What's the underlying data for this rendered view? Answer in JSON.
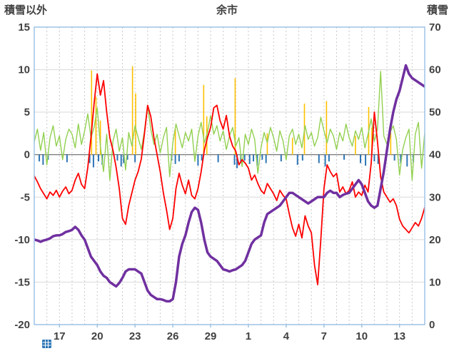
{
  "header": {
    "left_axis_title": "積雪以外",
    "title": "余市",
    "right_axis_title": "積雪"
  },
  "icons": {
    "bottom_left": "table-icon"
  },
  "colors": {
    "frame": "#9DC3E6",
    "grid": "#D9D9D9",
    "grid_dash": "#C9C9C9",
    "zero_line": "#808080",
    "text": "#404040",
    "red": "#FF0000",
    "green": "#92D050",
    "purple": "#7030A0",
    "orange": "#FFC000",
    "blue": "#2E75B6"
  },
  "chart_data": {
    "type": "line",
    "title": "余市",
    "left_axis": {
      "label": "積雪以外",
      "min": -20,
      "max": 15,
      "ticks": [
        15,
        10,
        5,
        0,
        -5,
        -10,
        -15,
        -20
      ]
    },
    "right_axis": {
      "label": "積雪",
      "min": 0,
      "max": 70,
      "ticks": [
        70,
        60,
        50,
        40,
        30,
        20,
        10,
        0
      ]
    },
    "x_axis": {
      "domain_start": 15,
      "domain_end": 46,
      "tick_days": [
        17,
        20,
        23,
        26,
        29,
        32,
        35,
        38,
        41,
        44
      ],
      "tick_labels": [
        "17",
        "20",
        "23",
        "26",
        "29",
        "1",
        "4",
        "7",
        "10",
        "13"
      ],
      "minor_grid_step": 1
    },
    "x_start": 15,
    "x_step": 0.25,
    "series": [
      {
        "name": "series-red-temperature",
        "axis": "left",
        "color": "#FF0000",
        "width": 1.8,
        "values": [
          -2.5,
          -3.2,
          -4.0,
          -4.6,
          -5.2,
          -4.4,
          -4.8,
          -4.2,
          -5.0,
          -4.3,
          -3.8,
          -4.6,
          -4.2,
          -3.0,
          -2.2,
          -3.5,
          -4.0,
          -1.5,
          2.0,
          6.0,
          9.5,
          7.0,
          8.7,
          5.0,
          2.0,
          0.5,
          -1.5,
          -4.0,
          -7.5,
          -8.2,
          -6.0,
          -4.5,
          -3.0,
          -2.0,
          -0.5,
          2.5,
          5.8,
          4.5,
          2.0,
          0.0,
          -2.0,
          -4.5,
          -6.5,
          -8.8,
          -7.5,
          -4.0,
          -2.2,
          -3.6,
          -4.6,
          -3.0,
          -4.8,
          -5.2,
          -4.0,
          -2.0,
          0.5,
          2.0,
          3.2,
          5.5,
          5.8,
          4.0,
          3.0,
          4.6,
          2.2,
          1.0,
          0.4,
          -1.2,
          -0.6,
          -1.0,
          -1.6,
          -3.0,
          -2.4,
          -3.4,
          -4.2,
          -4.6,
          -3.4,
          -4.0,
          -4.6,
          -5.4,
          -4.2,
          -4.8,
          -5.2,
          -7.0,
          -8.6,
          -9.6,
          -8.2,
          -9.8,
          -7.2,
          -8.4,
          -9.2,
          -13.0,
          -15.3,
          -10.0,
          -4.0,
          -1.2,
          -2.0,
          -2.6,
          -2.2,
          -4.4,
          -3.8,
          -4.6,
          -4.2,
          -3.2,
          -5.0,
          -4.4,
          -4.8,
          -3.6,
          -4.4,
          -1.0,
          5.0,
          1.5,
          -2.6,
          -4.4,
          -5.0,
          -5.6,
          -5.2,
          -6.0,
          -7.6,
          -8.4,
          -8.8,
          -9.2,
          -8.6,
          -8.0,
          -8.4,
          -7.5,
          -6.2
        ]
      },
      {
        "name": "series-green",
        "axis": "left",
        "color": "#92D050",
        "width": 1.4,
        "values": [
          1.5,
          3.0,
          0.5,
          2.6,
          -1.2,
          2.0,
          3.4,
          1.0,
          2.2,
          -0.6,
          1.8,
          3.0,
          2.4,
          0.8,
          3.6,
          1.2,
          2.8,
          4.8,
          2.0,
          3.2,
          5.5,
          1.0,
          -2.0,
          2.4,
          -3.0,
          1.6,
          3.0,
          0.4,
          2.0,
          -1.8,
          2.6,
          1.0,
          3.4,
          2.0,
          0.6,
          2.8,
          5.8,
          3.0,
          1.2,
          2.4,
          0.2,
          2.0,
          3.2,
          -2.6,
          1.4,
          3.6,
          2.2,
          0.8,
          2.6,
          1.6,
          3.0,
          -0.8,
          2.2,
          3.8,
          1.4,
          2.6,
          4.6,
          2.4,
          3.4,
          1.6,
          2.8,
          0.6,
          2.2,
          3.2,
          1.0,
          2.0,
          -1.4,
          2.4,
          1.2,
          3.0,
          1.8,
          -2.2,
          0.8,
          2.6,
          1.4,
          3.2,
          2.0,
          0.4,
          2.8,
          1.6,
          -0.6,
          2.2,
          3.0,
          1.2,
          2.4,
          0.8,
          3.4,
          1.8,
          2.6,
          1.0,
          2.0,
          4.4,
          2.8,
          1.4,
          3.0,
          2.2,
          0.6,
          2.6,
          1.6,
          3.6,
          2.0,
          1.0,
          2.8,
          1.8,
          3.2,
          0.8,
          2.4,
          4.2,
          1.6,
          3.0,
          9.8,
          2.2,
          1.2,
          2.6,
          3.4,
          1.8,
          -2.4,
          0.6,
          2.0,
          3.0,
          -3.0,
          2.4,
          3.8,
          -1.6,
          2.6
        ]
      },
      {
        "name": "series-purple-snow-depth",
        "axis": "right",
        "color": "#7030A0",
        "width": 3.5,
        "values": [
          20.0,
          19.8,
          19.5,
          19.8,
          20.0,
          20.3,
          20.8,
          21.0,
          21.0,
          21.3,
          21.8,
          22.0,
          22.3,
          23.0,
          22.3,
          21.0,
          20.0,
          18.0,
          16.0,
          15.0,
          14.0,
          12.5,
          11.5,
          11.0,
          10.0,
          9.5,
          9.0,
          9.8,
          11.0,
          12.5,
          13.0,
          13.0,
          13.0,
          12.5,
          12.0,
          10.0,
          8.0,
          7.0,
          6.5,
          6.0,
          6.0,
          5.8,
          5.5,
          5.5,
          6.0,
          10.0,
          16.0,
          19.0,
          21.0,
          24.0,
          26.5,
          27.5,
          27.0,
          24.0,
          20.0,
          17.0,
          16.0,
          15.5,
          15.0,
          14.0,
          13.0,
          12.8,
          12.5,
          12.8,
          13.0,
          13.5,
          14.0,
          15.0,
          17.0,
          19.0,
          20.0,
          20.5,
          21.0,
          24.0,
          26.0,
          26.5,
          27.0,
          27.5,
          28.0,
          29.0,
          30.0,
          31.0,
          31.0,
          30.5,
          30.0,
          29.5,
          29.0,
          28.5,
          29.0,
          29.5,
          30.0,
          30.0,
          30.0,
          31.0,
          31.5,
          31.0,
          31.0,
          30.0,
          30.5,
          30.8,
          31.0,
          32.0,
          33.0,
          34.0,
          33.0,
          31.0,
          29.0,
          28.0,
          27.5,
          28.0,
          32.0,
          36.0,
          41.0,
          46.0,
          50.0,
          53.0,
          55.0,
          58.0,
          61.0,
          59.0,
          58.0,
          57.5,
          57.0,
          56.5,
          56.0
        ]
      }
    ],
    "spikes": {
      "name": "orange-spikes",
      "axis": "left",
      "color": "#FFC000",
      "points": [
        {
          "day": 19.55,
          "value": 9.9
        },
        {
          "day": 19.9,
          "value": 6.8
        },
        {
          "day": 20.25,
          "value": 4.0
        },
        {
          "day": 22.8,
          "value": 10.4
        },
        {
          "day": 23.05,
          "value": 7.2
        },
        {
          "day": 26.2,
          "value": 3.0
        },
        {
          "day": 28.45,
          "value": 8.2
        },
        {
          "day": 28.7,
          "value": 4.5
        },
        {
          "day": 30.95,
          "value": 9.0
        },
        {
          "day": 33.5,
          "value": 2.5
        },
        {
          "day": 35.5,
          "value": 2.0
        },
        {
          "day": 36.45,
          "value": 6.0
        },
        {
          "day": 38.2,
          "value": 6.3
        },
        {
          "day": 40.5,
          "value": 2.2
        },
        {
          "day": 41.55,
          "value": 5.6
        },
        {
          "day": 41.8,
          "value": 3.2
        },
        {
          "day": 43.3,
          "value": 2.6
        }
      ]
    },
    "bars": {
      "name": "blue-ticks",
      "axis": "left",
      "color": "#2E75B6",
      "points": [
        {
          "day": 15.4,
          "value": -0.8
        },
        {
          "day": 15.7,
          "value": -1.2
        },
        {
          "day": 16.1,
          "value": -0.6
        },
        {
          "day": 17.6,
          "value": -0.9
        },
        {
          "day": 19.4,
          "value": -1.0
        },
        {
          "day": 19.7,
          "value": -1.5
        },
        {
          "day": 20.1,
          "value": -0.8
        },
        {
          "day": 20.4,
          "value": -1.2
        },
        {
          "day": 21.6,
          "value": -0.7
        },
        {
          "day": 21.9,
          "value": -1.4
        },
        {
          "day": 22.1,
          "value": -1.0
        },
        {
          "day": 22.4,
          "value": -0.6
        },
        {
          "day": 23.0,
          "value": -0.9
        },
        {
          "day": 25.9,
          "value": -0.7
        },
        {
          "day": 26.2,
          "value": -1.1
        },
        {
          "day": 26.5,
          "value": -0.8
        },
        {
          "day": 28.0,
          "value": -1.3
        },
        {
          "day": 28.3,
          "value": -0.7
        },
        {
          "day": 29.6,
          "value": -0.9
        },
        {
          "day": 30.9,
          "value": -1.2
        },
        {
          "day": 31.1,
          "value": -1.6
        },
        {
          "day": 31.4,
          "value": -1.0
        },
        {
          "day": 31.7,
          "value": -0.7
        },
        {
          "day": 32.1,
          "value": -1.1
        },
        {
          "day": 32.4,
          "value": -0.8
        },
        {
          "day": 32.7,
          "value": -1.3
        },
        {
          "day": 33.1,
          "value": -0.6
        },
        {
          "day": 33.4,
          "value": -1.0
        },
        {
          "day": 34.6,
          "value": -0.8
        },
        {
          "day": 35.9,
          "value": -1.2
        },
        {
          "day": 36.3,
          "value": -0.7
        },
        {
          "day": 37.6,
          "value": -1.0
        },
        {
          "day": 38.1,
          "value": -1.4
        },
        {
          "day": 38.4,
          "value": -0.8
        },
        {
          "day": 39.6,
          "value": -0.6
        },
        {
          "day": 40.9,
          "value": -1.0
        },
        {
          "day": 41.3,
          "value": -1.3
        },
        {
          "day": 42.0,
          "value": -0.8
        },
        {
          "day": 42.3,
          "value": -1.1
        },
        {
          "day": 43.6,
          "value": -0.7
        },
        {
          "day": 44.1,
          "value": -1.0
        },
        {
          "day": 44.6,
          "value": -1.4
        },
        {
          "day": 45.1,
          "value": -0.9
        }
      ]
    }
  }
}
